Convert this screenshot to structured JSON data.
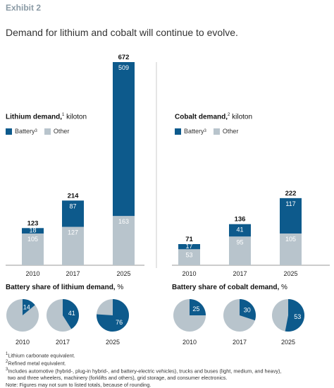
{
  "exhibit_label": "Exhibit 2",
  "headline": "Demand for lithium and cobalt will continue to evolve.",
  "colors": {
    "battery": "#0d5a8c",
    "other": "#b8c4cc",
    "axis": "#999999",
    "divider": "#cccccc"
  },
  "chart_data": [
    {
      "type": "bar",
      "title": "Lithium demand,",
      "title_sup": "1",
      "unit": "kiloton",
      "categories": [
        "2010",
        "2017",
        "2025"
      ],
      "series": [
        {
          "name": "Battery",
          "sup": "3",
          "values": [
            18,
            87,
            509
          ]
        },
        {
          "name": "Other",
          "values": [
            105,
            127,
            163
          ]
        }
      ],
      "totals": [
        123,
        214,
        672
      ]
    },
    {
      "type": "bar",
      "title": "Cobalt demand,",
      "title_sup": "2",
      "unit": "kiloton",
      "categories": [
        "2010",
        "2017",
        "2025"
      ],
      "series": [
        {
          "name": "Battery",
          "sup": "3",
          "values": [
            17,
            41,
            117
          ]
        },
        {
          "name": "Other",
          "values": [
            53,
            95,
            105
          ]
        }
      ],
      "totals": [
        71,
        136,
        222
      ]
    },
    {
      "type": "pie",
      "title": "Battery share of lithium demand,",
      "unit": "%",
      "categories": [
        "2010",
        "2017",
        "2025"
      ],
      "values": [
        14,
        41,
        76
      ]
    },
    {
      "type": "pie",
      "title": "Battery share of cobalt demand,",
      "unit": "%",
      "categories": [
        "2010",
        "2017",
        "2025"
      ],
      "values": [
        25,
        30,
        53
      ]
    }
  ],
  "footnotes": [
    {
      "sup": "1",
      "text": "Lithium carbonate equivalent."
    },
    {
      "sup": "2",
      "text": "Refined metal equivalent."
    },
    {
      "sup": "3",
      "text": "Includes automotive (hybrid-, plug-in hybrid-, and battery-electric vehicles), trucks and buses (light, medium, and heavy),"
    },
    {
      "sup": "",
      "text": "two and three wheelers, machinery (forklifts and others), grid storage, and consumer electronics."
    },
    {
      "sup": "",
      "text": "Note: Figures may not sum to listed totals, because of rounding."
    }
  ]
}
